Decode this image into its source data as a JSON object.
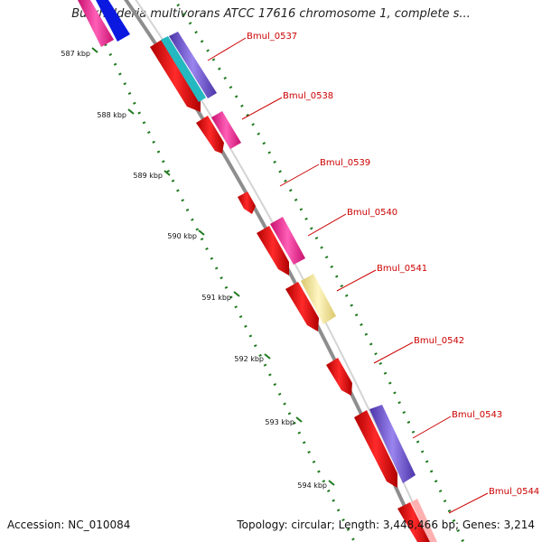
{
  "title": "Burkholderia multivorans ATCC 17616 chromosome 1, complete s...",
  "accession": "Accession: NC_010084",
  "summary": "Topology: circular; Length: 3,448,466 bp; Genes: 3,214",
  "kbp_labels": [
    "587 kbp",
    "588 kbp",
    "589 kbp",
    "590 kbp",
    "591 kbp",
    "592 kbp",
    "593 kbp",
    "594 kbp"
  ],
  "genes": [
    "Bmul_0537",
    "Bmul_0538",
    "Bmul_0539",
    "Bmul_0540",
    "Bmul_0541",
    "Bmul_0542",
    "Bmul_0543",
    "Bmul_0544"
  ],
  "colors": {
    "backbone": "#8e8e8e",
    "cds": "#e60000",
    "label": "#cc0000",
    "tick": "#1f7a1f",
    "magenta": "#ff1493",
    "blue": "#0b19e0",
    "cyan": "#24b8c0",
    "purple": "#7a5ad6",
    "khaki": "#f3e59a"
  }
}
